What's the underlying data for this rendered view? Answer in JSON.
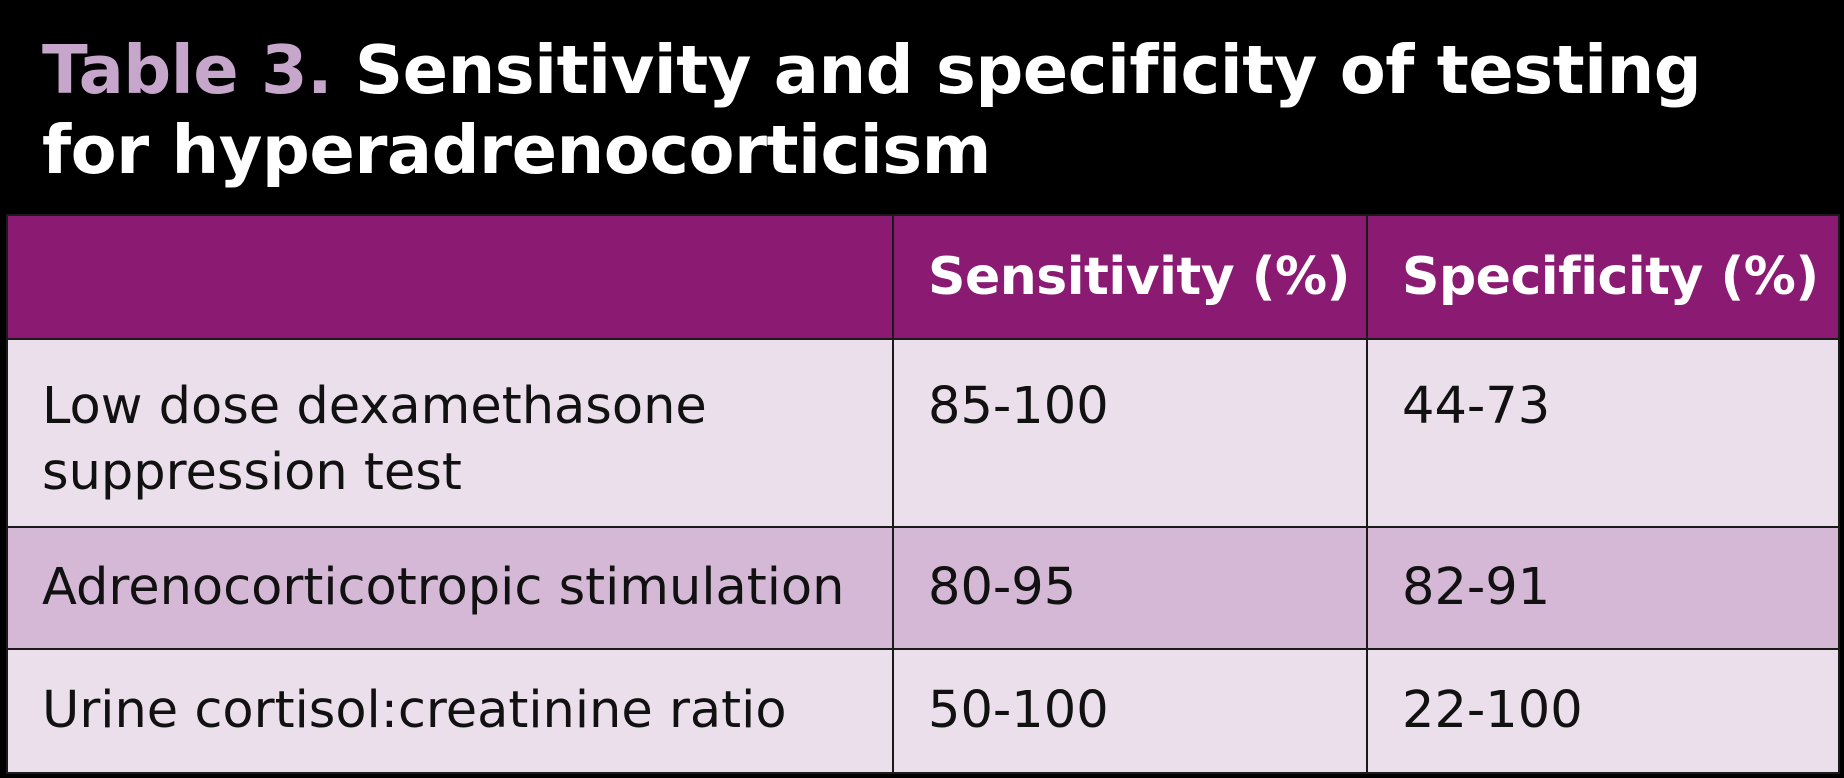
{
  "title": {
    "label": "Table 3.",
    "text_line1": "Sensitivity and specificity of testing",
    "text_line2": "for hyperadrenocorticism"
  },
  "colors": {
    "background": "#000000",
    "title_label": "#c7a6cb",
    "header_bg": "#8b1a72",
    "row_light": "#ebdfec",
    "row_dark": "#d4b8d6"
  },
  "table": {
    "headers": [
      "",
      "Sensitivity (%)",
      "Specificity (%)"
    ],
    "rows": [
      {
        "test_line1": "Low dose dexamethasone",
        "test_line2": "suppression test",
        "sensitivity": "85-100",
        "specificity": "44-73"
      },
      {
        "test_line1": "Adrenocorticotropic stimulation",
        "test_line2": "",
        "sensitivity": "80-95",
        "specificity": "82-91"
      },
      {
        "test_line1": "Urine cortisol:creatinine ratio",
        "test_line2": "",
        "sensitivity": "50-100",
        "specificity": "22-100"
      }
    ]
  }
}
